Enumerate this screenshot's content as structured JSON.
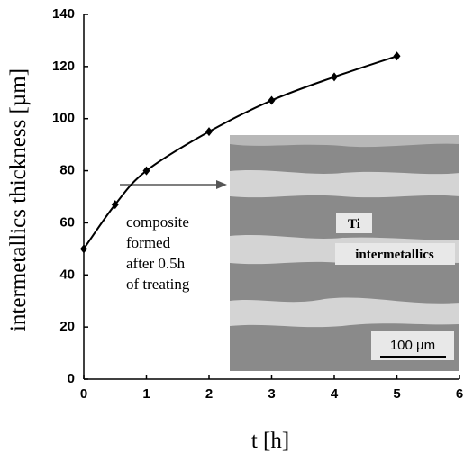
{
  "chart_data": {
    "type": "line",
    "x_label": "t [h]",
    "y_label": "intermetallics thickness [µm]",
    "series": [
      {
        "name": null,
        "color": "#000000",
        "x": [
          0,
          0.5,
          1,
          2,
          3,
          4,
          5
        ],
        "values": [
          50,
          67,
          80,
          95,
          107,
          116,
          124
        ]
      }
    ],
    "xlim": [
      0,
      6
    ],
    "xticks": [
      0,
      1,
      2,
      3,
      4,
      5,
      6
    ],
    "ylim": [
      0,
      140
    ],
    "yticks": [
      0,
      20,
      40,
      60,
      80,
      100,
      120,
      140
    ],
    "annotation": [
      "composite",
      "formed",
      "after 0.5h",
      "of treating"
    ],
    "inset_labels": {
      "phase_1": "Ti",
      "phase_2": "intermetallics",
      "scale_bar": "100 µm"
    }
  }
}
